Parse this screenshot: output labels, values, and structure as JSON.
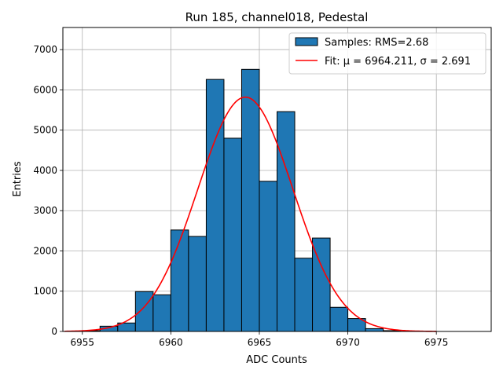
{
  "chart_data": {
    "type": "bar",
    "title": "Run 185, channel018, Pedestal",
    "xlabel": "ADC Counts",
    "ylabel": "Entries",
    "xlim": [
      6953.9,
      6978.1
    ],
    "ylim": [
      0,
      7550
    ],
    "xticks": [
      6955,
      6960,
      6965,
      6970,
      6975
    ],
    "yticks": [
      0,
      1000,
      2000,
      3000,
      4000,
      5000,
      6000,
      7000
    ],
    "grid": true,
    "legend_position": "top-right",
    "histogram": {
      "name": "Samples: RMS=2.68",
      "color": "#1f77b4",
      "edge_color": "#000000",
      "bin_edges": [
        6955,
        6956,
        6957,
        6958,
        6959,
        6960,
        6961,
        6962,
        6963,
        6964,
        6965,
        6966,
        6967,
        6968,
        6969,
        6970,
        6971,
        6972,
        6973
      ],
      "counts": [
        20,
        130,
        210,
        990,
        910,
        2520,
        2360,
        6260,
        4800,
        6510,
        3730,
        5460,
        1820,
        2320,
        600,
        320,
        70,
        20
      ]
    },
    "fit": {
      "name": "Fit: μ = 6964.211, σ = 2.691",
      "color": "#ff0000",
      "mu": 6964.211,
      "sigma": 2.691,
      "amplitude": 5820,
      "x_range": [
        6954,
        6975
      ]
    }
  }
}
